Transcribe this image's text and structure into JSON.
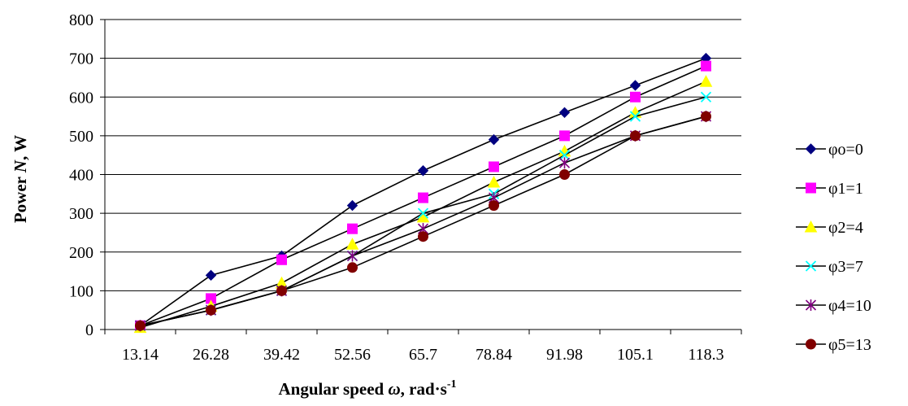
{
  "chart_data": {
    "type": "line",
    "xlabel": {
      "prefix": "Angular speed ",
      "symbol": "ω",
      "suffix": ", rad·s",
      "superscript": "-1"
    },
    "ylabel": {
      "prefix": "Power ",
      "symbol": "N",
      "suffix": ", W"
    },
    "categories": [
      "13.14",
      "26.28",
      "39.42",
      "52.56",
      "65.7",
      "78.84",
      "91.98",
      "105.1",
      "118.3"
    ],
    "ylim": [
      0,
      800
    ],
    "yticks": [
      "0",
      "100",
      "200",
      "300",
      "400",
      "500",
      "600",
      "700",
      "800"
    ],
    "grid": "horizontal",
    "legend_position": "right",
    "series": [
      {
        "name": "φo=0",
        "marker": "diamond",
        "color": "#000080",
        "values": [
          10,
          140,
          190,
          320,
          410,
          490,
          560,
          630,
          700
        ]
      },
      {
        "name": "φ1=1",
        "marker": "square",
        "color": "#ff00ff",
        "values": [
          10,
          80,
          180,
          260,
          340,
          420,
          500,
          600,
          680
        ]
      },
      {
        "name": "φ2=4",
        "marker": "triangle",
        "color": "#ffff00",
        "values": [
          5,
          60,
          120,
          220,
          290,
          380,
          460,
          560,
          640
        ]
      },
      {
        "name": "φ3=7",
        "marker": "x",
        "color": "#00ffff",
        "values": [
          10,
          50,
          100,
          190,
          300,
          350,
          450,
          550,
          600
        ]
      },
      {
        "name": "φ4=10",
        "marker": "star",
        "color": "#800080",
        "values": [
          10,
          50,
          100,
          190,
          260,
          340,
          430,
          500,
          550
        ]
      },
      {
        "name": "φ5=13",
        "marker": "circle",
        "color": "#800000",
        "values": [
          10,
          50,
          100,
          160,
          240,
          320,
          400,
          500,
          550
        ]
      }
    ]
  }
}
